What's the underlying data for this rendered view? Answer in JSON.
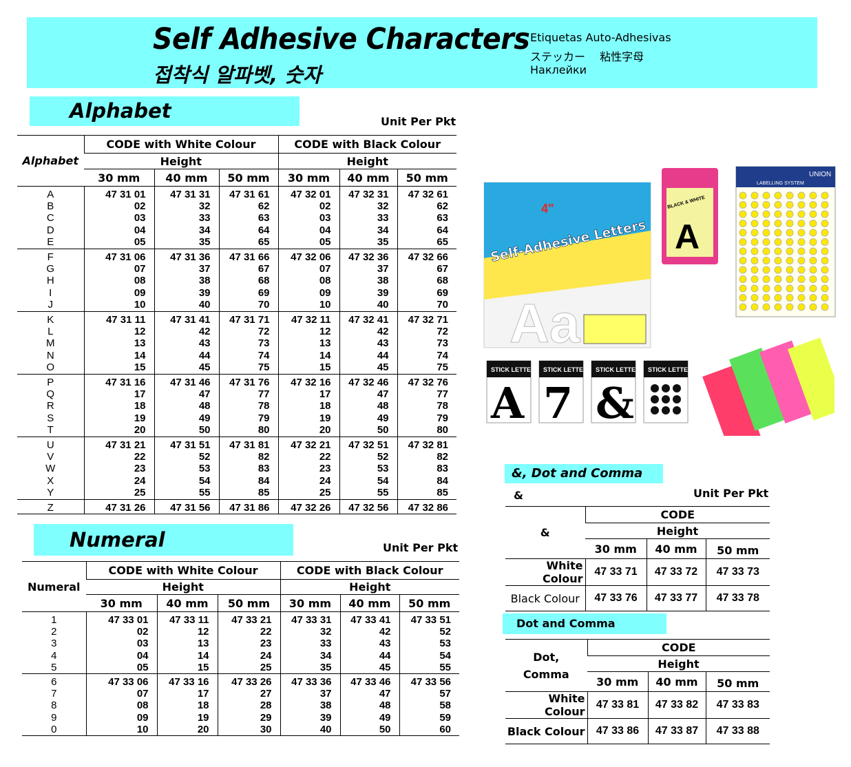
{
  "header": {
    "title": "Self Adhesive Characters",
    "subtitle_korean": "접착식 알파벳, 숫자",
    "lang_spanish": "Etiquetas Auto-Adhesivas",
    "lang_japanese": "ステッカー　 粘性字母",
    "lang_russian": "Наклейки",
    "banner_color": "#80ffff"
  },
  "alphabet": {
    "section_title": "Alphabet",
    "unit": "Unit Per Pkt",
    "row_header": "Alphabet",
    "group_white": "CODE with White Colour",
    "group_black": "CODE with Black Colour",
    "height": "Height",
    "sizes": [
      "30 mm",
      "40 mm",
      "50 mm",
      "30 mm",
      "40 mm",
      "50 mm"
    ],
    "groups": [
      {
        "labels": [
          "A",
          "B",
          "C",
          "D",
          "E"
        ],
        "cols": [
          [
            "47 31 01",
            "02",
            "03",
            "04",
            "05"
          ],
          [
            "47 31 31",
            "32",
            "33",
            "34",
            "35"
          ],
          [
            "47 31 61",
            "62",
            "63",
            "64",
            "65"
          ],
          [
            "47 32 01",
            "02",
            "03",
            "04",
            "05"
          ],
          [
            "47 32 31",
            "32",
            "33",
            "34",
            "35"
          ],
          [
            "47 32 61",
            "62",
            "63",
            "64",
            "65"
          ]
        ]
      },
      {
        "labels": [
          "F",
          "G",
          "H",
          "I",
          "J"
        ],
        "cols": [
          [
            "47 31 06",
            "07",
            "08",
            "09",
            "10"
          ],
          [
            "47 31 36",
            "37",
            "38",
            "39",
            "40"
          ],
          [
            "47 31 66",
            "67",
            "68",
            "69",
            "70"
          ],
          [
            "47 32 06",
            "07",
            "08",
            "09",
            "10"
          ],
          [
            "47 32 36",
            "37",
            "38",
            "39",
            "40"
          ],
          [
            "47 32 66",
            "67",
            "68",
            "69",
            "70"
          ]
        ]
      },
      {
        "labels": [
          "K",
          "L",
          "M",
          "N",
          "O"
        ],
        "cols": [
          [
            "47 31 11",
            "12",
            "13",
            "14",
            "15"
          ],
          [
            "47 31 41",
            "42",
            "43",
            "44",
            "45"
          ],
          [
            "47 31 71",
            "72",
            "73",
            "74",
            "75"
          ],
          [
            "47 32 11",
            "12",
            "13",
            "14",
            "15"
          ],
          [
            "47 32 41",
            "42",
            "43",
            "44",
            "45"
          ],
          [
            "47 32 71",
            "72",
            "73",
            "74",
            "75"
          ]
        ]
      },
      {
        "labels": [
          "P",
          "Q",
          "R",
          "S",
          "T"
        ],
        "cols": [
          [
            "47 31 16",
            "17",
            "18",
            "19",
            "20"
          ],
          [
            "47 31 46",
            "47",
            "48",
            "49",
            "50"
          ],
          [
            "47 31 76",
            "77",
            "78",
            "79",
            "80"
          ],
          [
            "47 32 16",
            "17",
            "18",
            "19",
            "20"
          ],
          [
            "47 32 46",
            "47",
            "48",
            "49",
            "50"
          ],
          [
            "47 32 76",
            "77",
            "78",
            "79",
            "80"
          ]
        ]
      },
      {
        "labels": [
          "U",
          "V",
          "W",
          "X",
          "Y"
        ],
        "cols": [
          [
            "47 31 21",
            "22",
            "23",
            "24",
            "25"
          ],
          [
            "47 31 51",
            "52",
            "53",
            "54",
            "55"
          ],
          [
            "47 31 81",
            "82",
            "83",
            "84",
            "85"
          ],
          [
            "47 32 21",
            "22",
            "23",
            "24",
            "25"
          ],
          [
            "47 32 51",
            "52",
            "53",
            "54",
            "55"
          ],
          [
            "47 32 81",
            "82",
            "83",
            "84",
            "85"
          ]
        ]
      },
      {
        "labels": [
          "Z"
        ],
        "cols": [
          [
            "47 31 26"
          ],
          [
            "47 31 56"
          ],
          [
            "47 31 86"
          ],
          [
            "47 32 26"
          ],
          [
            "47 32 56"
          ],
          [
            "47 32 86"
          ]
        ]
      }
    ]
  },
  "numeral": {
    "section_title": "Numeral",
    "unit": "Unit Per Pkt",
    "row_header": "Numeral",
    "group_white": "CODE with  White Colour",
    "group_black": "CODE with Black Colour",
    "height": "Height",
    "sizes": [
      "30 mm",
      "40 mm",
      "50 mm",
      "30 mm",
      "40 mm",
      "50 mm"
    ],
    "groups": [
      {
        "labels": [
          "1",
          "2",
          "3",
          "4",
          "5"
        ],
        "cols": [
          [
            "47 33 01",
            "02",
            "03",
            "04",
            "05"
          ],
          [
            "47 33 11",
            "12",
            "13",
            "14",
            "15"
          ],
          [
            "47 33 21",
            "22",
            "23",
            "24",
            "25"
          ],
          [
            "47 33 31",
            "32",
            "33",
            "34",
            "35"
          ],
          [
            "47 33 41",
            "42",
            "43",
            "44",
            "45"
          ],
          [
            "47 33 51",
            "52",
            "53",
            "54",
            "55"
          ]
        ]
      },
      {
        "labels": [
          "6",
          "7",
          "8",
          "9",
          "0"
        ],
        "cols": [
          [
            "47 33 06",
            "07",
            "08",
            "09",
            "10"
          ],
          [
            "47 33 16",
            "17",
            "18",
            "19",
            "20"
          ],
          [
            "47 33 26",
            "27",
            "28",
            "29",
            "30"
          ],
          [
            "47 33 36",
            "37",
            "38",
            "39",
            "40"
          ],
          [
            "47 33 46",
            "47",
            "48",
            "49",
            "50"
          ],
          [
            "47 33 56",
            "57",
            "58",
            "59",
            "60"
          ]
        ]
      }
    ]
  },
  "ampersand": {
    "section_title": "&, Dot and Comma",
    "sub_label": "&",
    "unit": "Unit Per Pkt",
    "row_header": "&",
    "code": "CODE",
    "height": "Height",
    "sizes": [
      "30 mm",
      "40 mm",
      "50 mm"
    ],
    "rows": [
      {
        "label": "White Colour",
        "codes": [
          "47 33 71",
          "47 33 72",
          "47 33 73"
        ]
      },
      {
        "label": "Black Colour",
        "codes": [
          "47 33 76",
          "47 33 77",
          "47 33 78"
        ]
      }
    ]
  },
  "dotcomma": {
    "section_title": "Dot and Comma",
    "row_header_1": "Dot,",
    "row_header_2": "Comma",
    "code": "CODE",
    "height": "Height",
    "sizes": [
      "30 mm",
      "40 mm",
      "50 mm"
    ],
    "rows": [
      {
        "label": "White Colour",
        "codes": [
          "47 33 81",
          "47 33 82",
          "47 33 83"
        ]
      },
      {
        "label": "Black Colour",
        "codes": [
          "47 33 86",
          "47 33 87",
          "47 33 88"
        ]
      }
    ]
  },
  "product_images": {
    "pacon_pack_text": "Self-Adhesive Letters",
    "pacon_size": "4\"",
    "black_white_pack": "BLACK & WHITE",
    "black_white_letter": "A",
    "union_brand": "UNION",
    "union_system": "LABELLING SYSTEM",
    "stick_letters": "STICK LETTERS",
    "card_glyphs": [
      "A",
      "7",
      "&"
    ]
  }
}
